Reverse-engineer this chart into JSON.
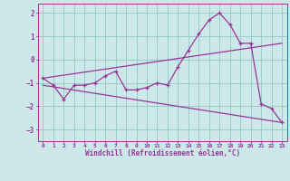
{
  "bg_color": "#cce8e8",
  "line_color": "#993399",
  "grid_color": "#99cccc",
  "xlabel": "Windchill (Refroidissement éolien,°C)",
  "x_hours": [
    0,
    1,
    2,
    3,
    4,
    5,
    6,
    7,
    8,
    9,
    10,
    11,
    12,
    13,
    14,
    15,
    16,
    17,
    18,
    19,
    20,
    21,
    22,
    23
  ],
  "main_curve": [
    -0.8,
    -1.1,
    -1.7,
    -1.1,
    -1.1,
    -1.0,
    -0.7,
    -0.5,
    -1.3,
    -1.3,
    -1.2,
    -1.0,
    -1.1,
    -0.3,
    0.4,
    1.1,
    1.7,
    2.0,
    1.5,
    0.7,
    0.7,
    -1.9,
    -2.1,
    -2.7
  ],
  "trend1_x": [
    0,
    23
  ],
  "trend1_y": [
    -0.8,
    0.7
  ],
  "trend2_x": [
    0,
    23
  ],
  "trend2_y": [
    -1.1,
    -2.7
  ],
  "ylim": [
    -3.5,
    2.4
  ],
  "yticks": [
    -3,
    -2,
    -1,
    0,
    1,
    2
  ],
  "xticks": [
    0,
    1,
    2,
    3,
    4,
    5,
    6,
    7,
    8,
    9,
    10,
    11,
    12,
    13,
    14,
    15,
    16,
    17,
    18,
    19,
    20,
    21,
    22,
    23
  ]
}
